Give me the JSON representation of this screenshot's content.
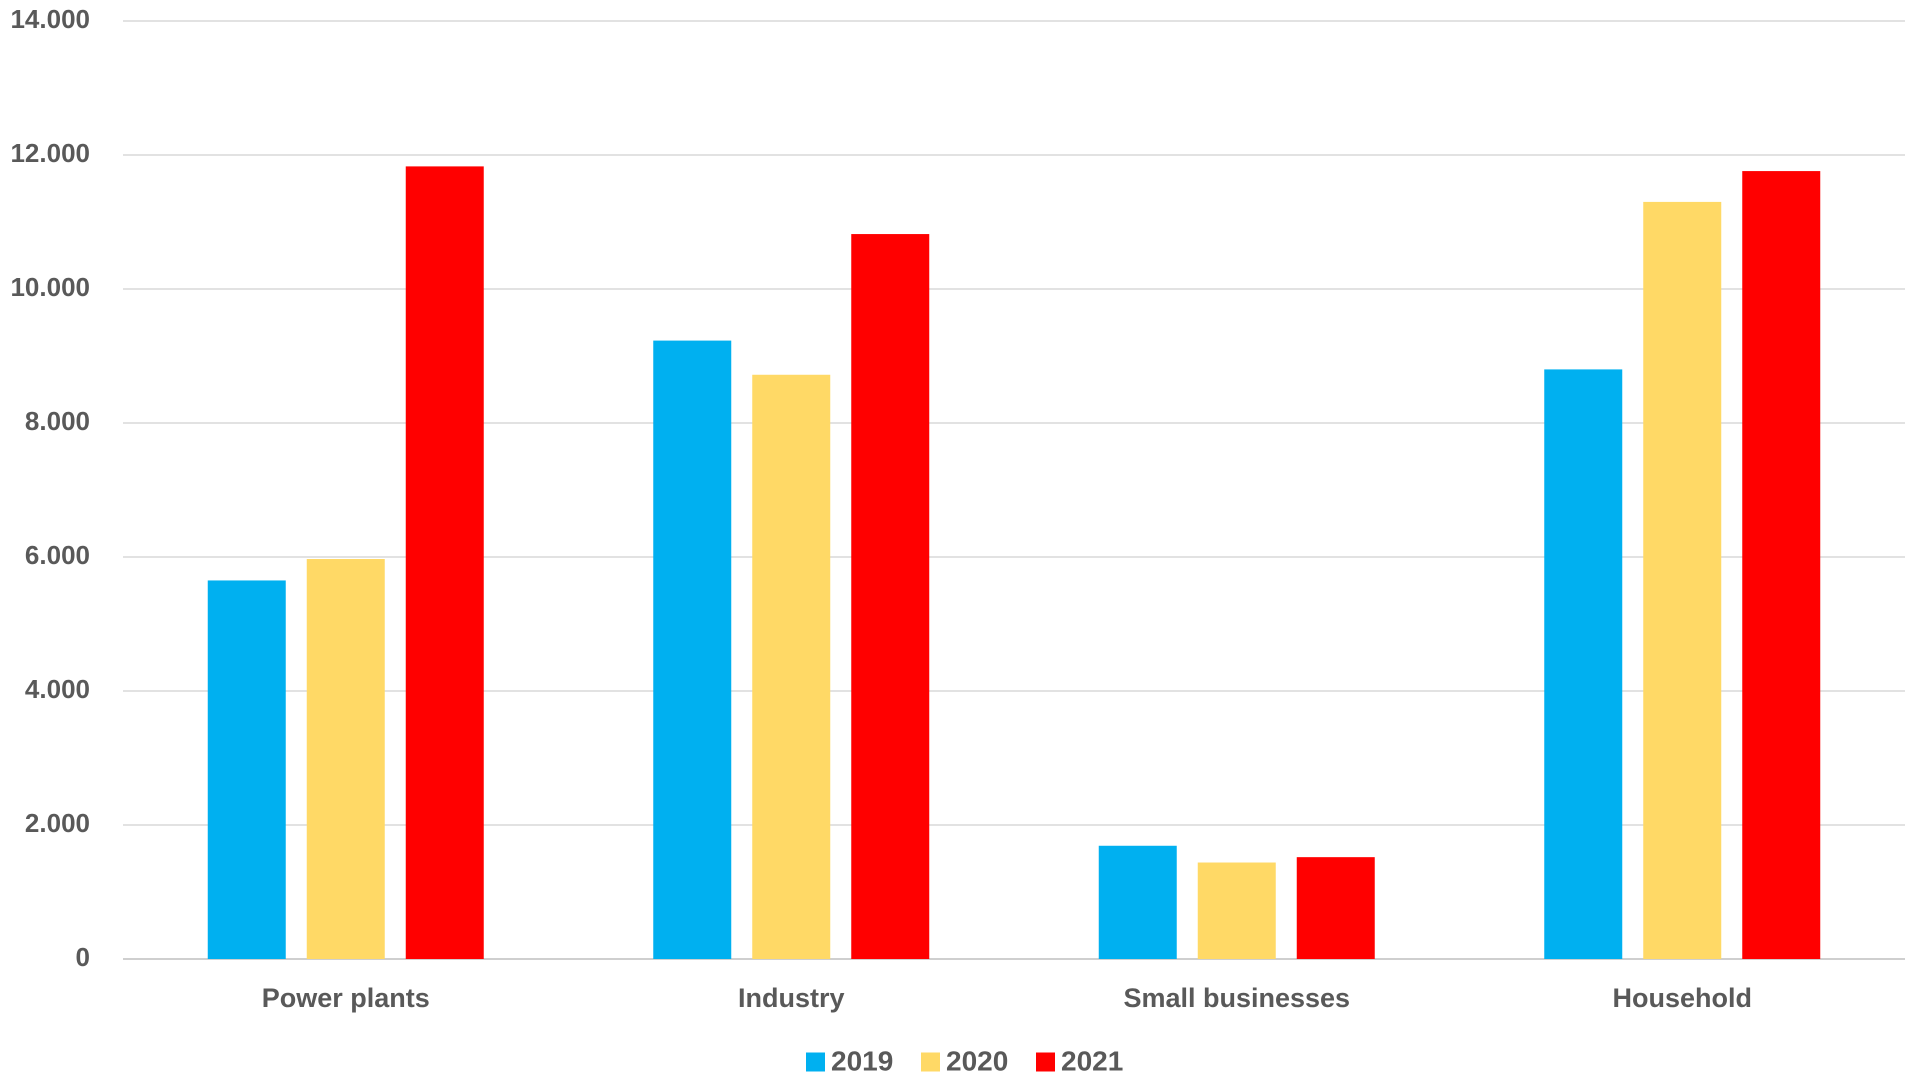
{
  "chart_data": {
    "type": "bar",
    "categories": [
      "Power plants",
      "Industry",
      "Small businesses",
      "Household"
    ],
    "series": [
      {
        "name": "2019",
        "color": "#00B0F0",
        "values": [
          5650,
          9230,
          1690,
          8800
        ]
      },
      {
        "name": "2020",
        "color": "#FFD966",
        "values": [
          5970,
          8720,
          1440,
          11300
        ]
      },
      {
        "name": "2021",
        "color": "#FF0000",
        "values": [
          11830,
          10820,
          1520,
          11760
        ]
      }
    ],
    "yticks": [
      0,
      2000,
      4000,
      6000,
      8000,
      10000,
      12000,
      14000
    ],
    "ytick_labels": [
      "0",
      "2.000",
      "4.000",
      "6.000",
      "8.000",
      "10.000",
      "12.000",
      "14.000"
    ],
    "ylim": [
      0,
      14000
    ],
    "grid": true,
    "legend_position": "bottom-center",
    "title": "",
    "xlabel": "",
    "ylabel": ""
  }
}
